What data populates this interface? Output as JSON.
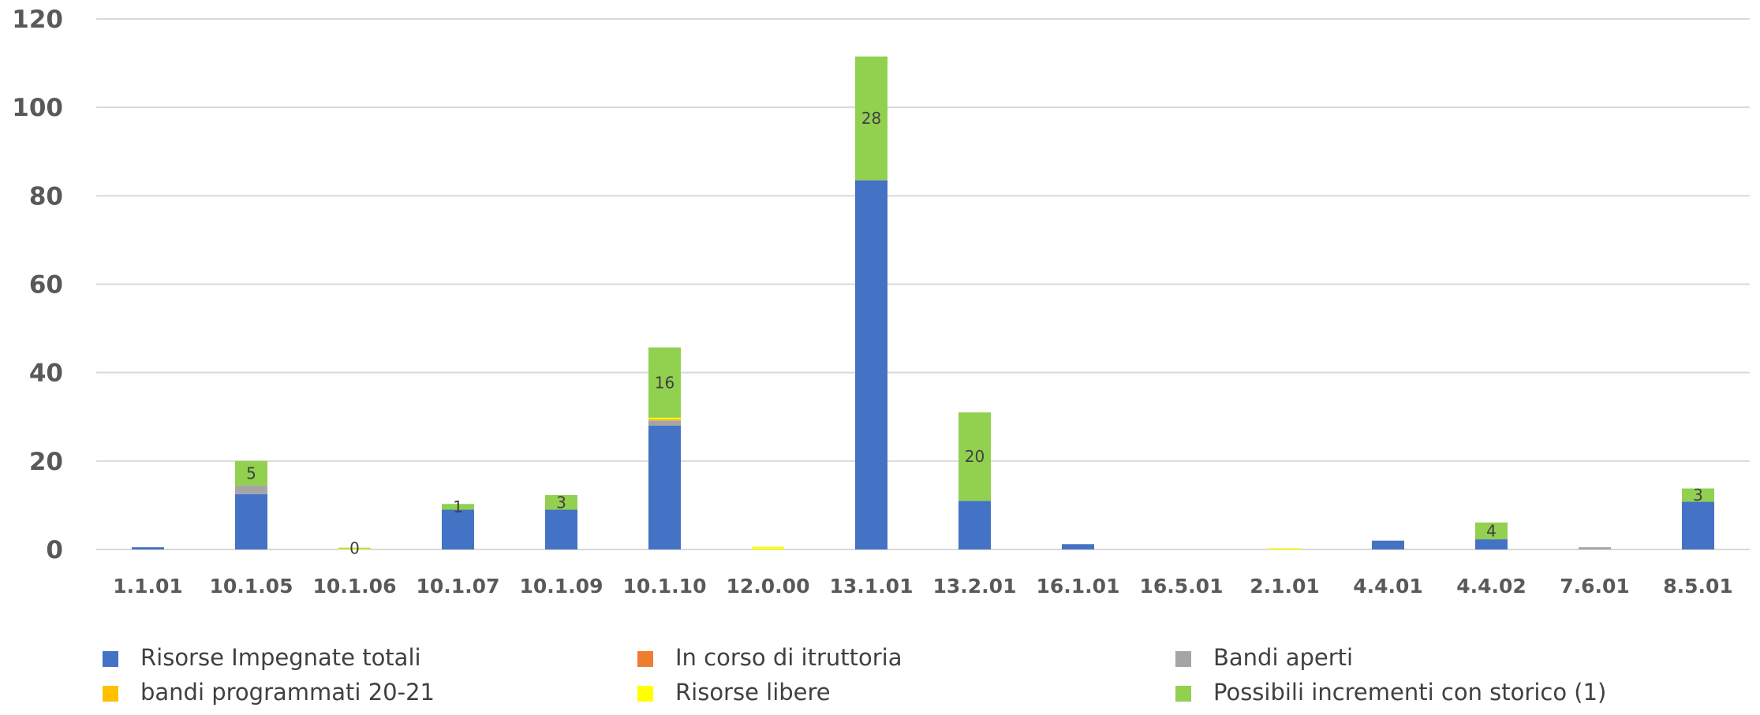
{
  "chart_data": {
    "type": "bar",
    "stacked": true,
    "title": "",
    "xlabel": "",
    "ylabel": "",
    "ylim": [
      0,
      120
    ],
    "yticks": [
      0,
      20,
      40,
      60,
      80,
      100,
      120
    ],
    "grid": true,
    "legend_position": "bottom",
    "categories": [
      "1.1.01",
      "10.1.05",
      "10.1.06",
      "10.1.07",
      "10.1.09",
      "10.1.10",
      "12.0.00",
      "13.1.01",
      "13.2.01",
      "16.1.01",
      "16.5.01",
      "2.1.01",
      "4.4.01",
      "4.4.02",
      "7.6.01",
      "8.5.01"
    ],
    "series": [
      {
        "name": "Risorse Impegnate totali",
        "color": "#4472C4",
        "values": [
          0.5,
          12.5,
          0,
          9,
          9,
          28,
          0,
          83.5,
          11,
          1.2,
          0,
          0,
          2,
          2.3,
          0,
          10.8
        ]
      },
      {
        "name": "In corso di itruttoria",
        "color": "#ED7D31",
        "values": [
          0,
          0,
          0,
          0,
          0,
          0,
          0,
          0,
          0,
          0,
          0,
          0,
          0,
          0,
          0,
          0
        ]
      },
      {
        "name": "Bandi aperti",
        "color": "#A5A5A5",
        "values": [
          0,
          2,
          0,
          0,
          0,
          1.2,
          0,
          0,
          0,
          0,
          0,
          0,
          0,
          0,
          0.5,
          0
        ]
      },
      {
        "name": "bandi programmati 20-21",
        "color": "#FFC000",
        "values": [
          0,
          0,
          0,
          0,
          0,
          0.3,
          0,
          0,
          0,
          0,
          0,
          0,
          0,
          0,
          0,
          0
        ]
      },
      {
        "name": "Risorse libere",
        "color": "#FFFF00",
        "values": [
          0,
          0,
          0.2,
          0,
          0,
          0.3,
          0.6,
          0,
          0,
          0,
          0,
          0.3,
          0,
          0,
          0,
          0
        ]
      },
      {
        "name": "Possibili incrementi con storico (1)",
        "color": "#92D050",
        "values": [
          0,
          5.5,
          0.2,
          1.3,
          3.3,
          15.9,
          0,
          28,
          20,
          0,
          0,
          0,
          0,
          3.8,
          0,
          3
        ],
        "data_labels": [
          "",
          "5",
          "0",
          "1",
          "3",
          "16",
          "",
          "28",
          "20",
          "",
          "",
          "",
          "",
          "4",
          "",
          "3"
        ]
      }
    ]
  }
}
